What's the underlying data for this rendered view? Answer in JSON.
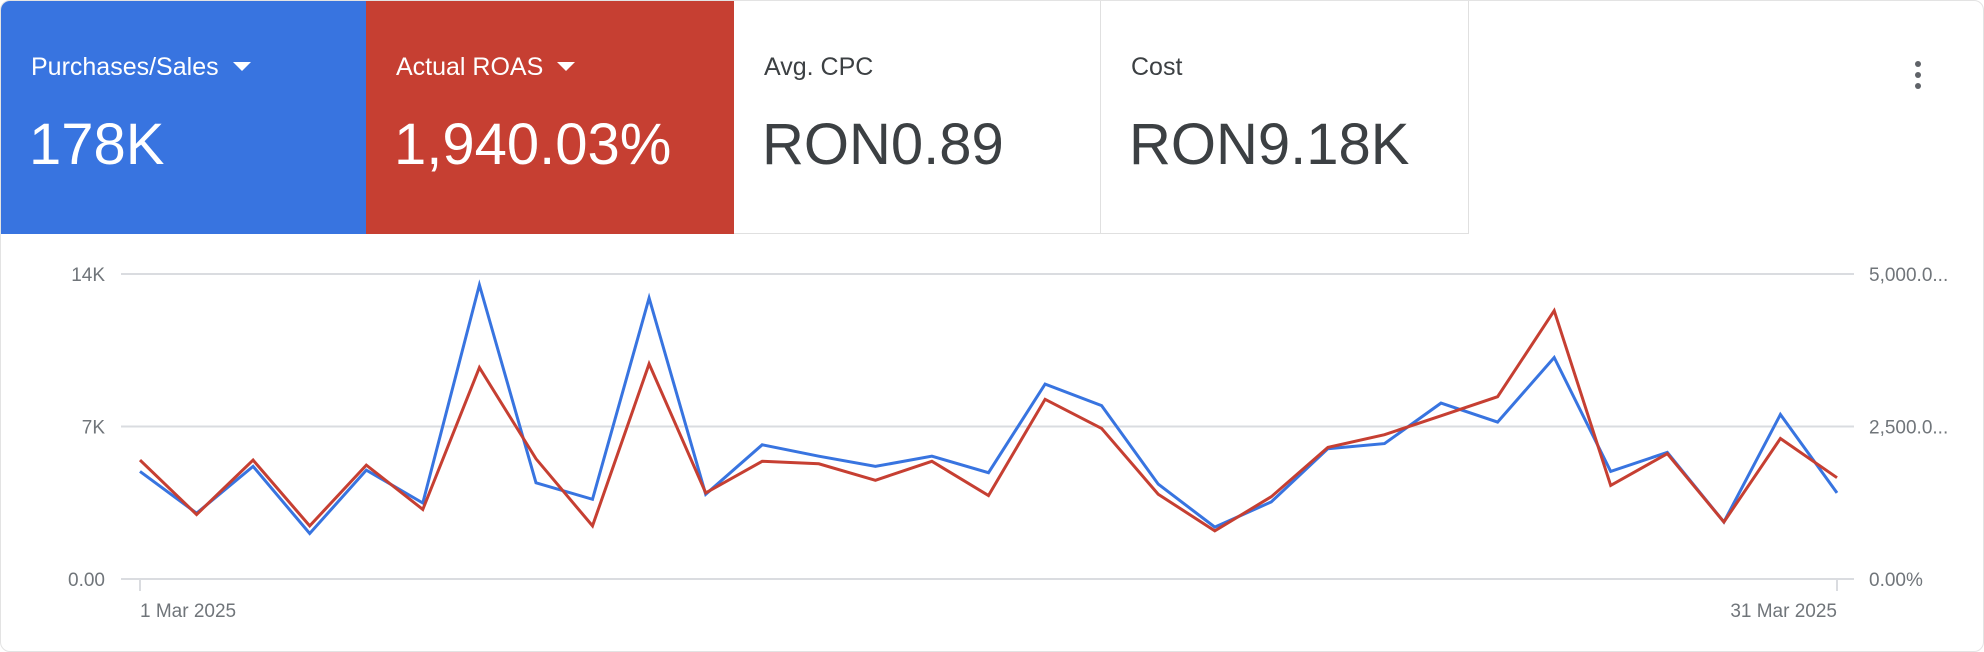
{
  "metrics": [
    {
      "label": "Purchases/Sales",
      "value": "178K",
      "selected": true,
      "color": "#3874e0",
      "dropdown": true
    },
    {
      "label": "Actual ROAS",
      "value": "1,940.03%",
      "selected": true,
      "color": "#c63f32",
      "dropdown": true
    },
    {
      "label": "Avg. CPC",
      "value": "RON0.89",
      "selected": false
    },
    {
      "label": "Cost",
      "value": "RON9.18K",
      "selected": false
    }
  ],
  "more_icon": "more-vert-icon",
  "chart_data": {
    "type": "line",
    "x": [
      "1 Mar",
      "2 Mar",
      "3 Mar",
      "4 Mar",
      "5 Mar",
      "6 Mar",
      "7 Mar",
      "8 Mar",
      "9 Mar",
      "10 Mar",
      "11 Mar",
      "12 Mar",
      "13 Mar",
      "14 Mar",
      "15 Mar",
      "16 Mar",
      "17 Mar",
      "18 Mar",
      "19 Mar",
      "20 Mar",
      "21 Mar",
      "22 Mar",
      "23 Mar",
      "24 Mar",
      "25 Mar",
      "26 Mar",
      "27 Mar",
      "28 Mar",
      "29 Mar",
      "30 Mar",
      "31 Mar"
    ],
    "x_tick_labels": [
      "1 Mar 2025",
      "31 Mar 2025"
    ],
    "left_axis": {
      "ticks": [
        "0.00",
        "7K",
        "14K"
      ],
      "range": [
        0,
        14000
      ]
    },
    "right_axis": {
      "ticks": [
        "0.00%",
        "2,500.0...",
        "5,000.0..."
      ],
      "range": [
        0,
        5000
      ]
    },
    "grid": true,
    "series": [
      {
        "name": "Purchases/Sales",
        "axis": "left",
        "color": "#3874e0",
        "values": [
          4940,
          3020,
          5170,
          2090,
          5000,
          3490,
          13500,
          4415,
          3660,
          12900,
          3890,
          6160,
          5635,
          5170,
          5635,
          4880,
          8945,
          7960,
          4355,
          2380,
          3540,
          5980,
          6215,
          8075,
          7200,
          10165,
          4940,
          5810,
          2615,
          7550,
          3950
        ]
      },
      {
        "name": "Actual ROAS",
        "axis": "right",
        "color": "#c63f32",
        "values": [
          1950,
          1058,
          1950,
          871,
          1867,
          1141,
          3465,
          1971,
          871,
          3527,
          1411,
          1929,
          1888,
          1618,
          1929,
          1369,
          2946,
          2469,
          1390,
          788,
          1349,
          2158,
          2365,
          2676,
          2988,
          4398,
          1535,
          2054,
          934,
          2303,
          1660
        ]
      }
    ]
  }
}
